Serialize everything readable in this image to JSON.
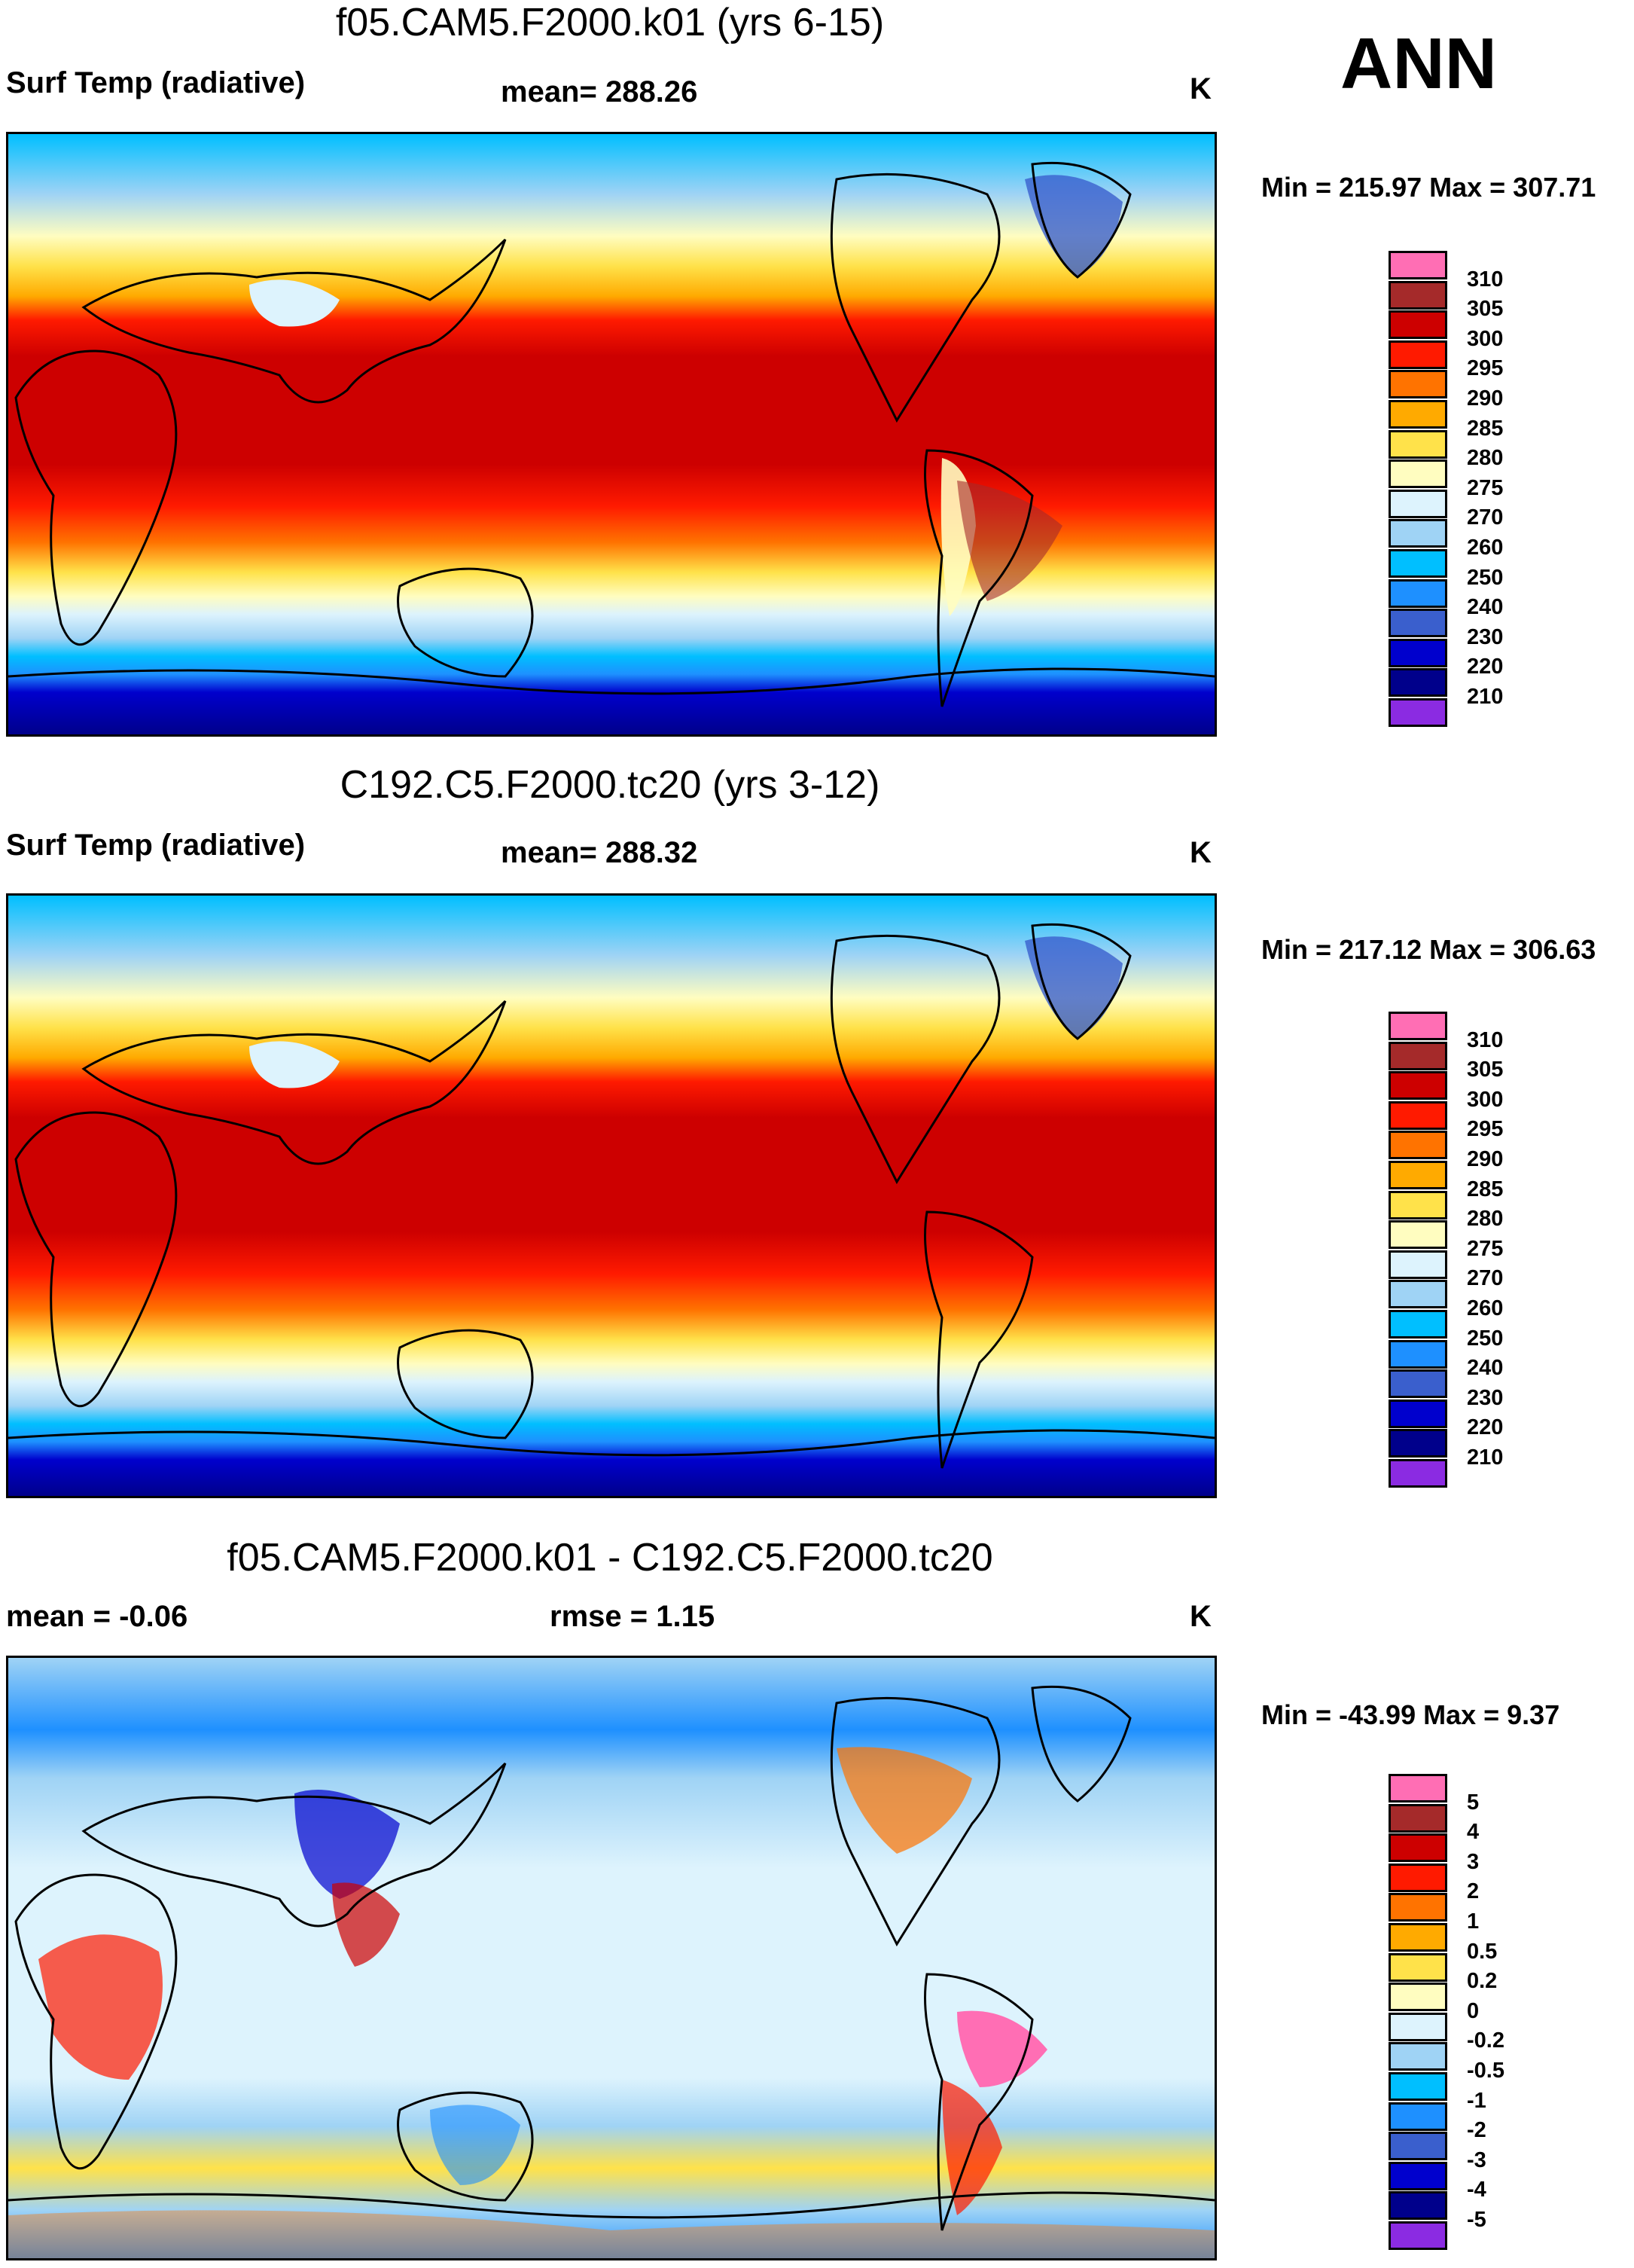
{
  "season": "ANN",
  "colors": {
    "abs": [
      "#8b2be2",
      "#00008b",
      "#0000cd",
      "#3a5fcd",
      "#1e90ff",
      "#00bfff",
      "#9fd3f5",
      "#ddf3fd",
      "#fffdc0",
      "#ffe24a",
      "#ffaa00",
      "#ff7300",
      "#ff1a00",
      "#cd0000",
      "#a52a2a",
      "#ff6eb4"
    ],
    "diff": [
      "#8b2be2",
      "#00008b",
      "#0000cd",
      "#3a5fcd",
      "#1e90ff",
      "#00bfff",
      "#9fd3f5",
      "#ddf3fd",
      "#fffdc0",
      "#ffe24a",
      "#ffaa00",
      "#ff7300",
      "#ff1a00",
      "#cd0000",
      "#a52a2a",
      "#ff6eb4"
    ]
  },
  "panels": [
    {
      "title": "f05.CAM5.F2000.k01 (yrs 6-15)",
      "left_label": "Surf Temp (radiative)",
      "center_label": "mean= 288.26",
      "units": "K",
      "minmax": "Min = 215.97 Max = 307.71",
      "colorbar_labels": [
        "310",
        "305",
        "300",
        "295",
        "290",
        "285",
        "280",
        "275",
        "270",
        "260",
        "250",
        "240",
        "230",
        "220",
        "210"
      ]
    },
    {
      "title": "C192.C5.F2000.tc20 (yrs 3-12)",
      "left_label": "Surf Temp (radiative)",
      "center_label": "mean= 288.32",
      "units": "K",
      "minmax": "Min = 217.12 Max = 306.63",
      "colorbar_labels": [
        "310",
        "305",
        "300",
        "295",
        "290",
        "285",
        "280",
        "275",
        "270",
        "260",
        "250",
        "240",
        "230",
        "220",
        "210"
      ]
    },
    {
      "title": "f05.CAM5.F2000.k01 - C192.C5.F2000.tc20",
      "left_label": "mean =  -0.06",
      "center_label": "rmse =   1.15",
      "units": "K",
      "minmax": "Min = -43.99 Max =   9.37",
      "colorbar_labels": [
        "5",
        "4",
        "3",
        "2",
        "1",
        "0.5",
        "0.2",
        "0",
        "-0.2",
        "-0.5",
        "-1",
        "-2",
        "-3",
        "-4",
        "-5"
      ]
    }
  ]
}
